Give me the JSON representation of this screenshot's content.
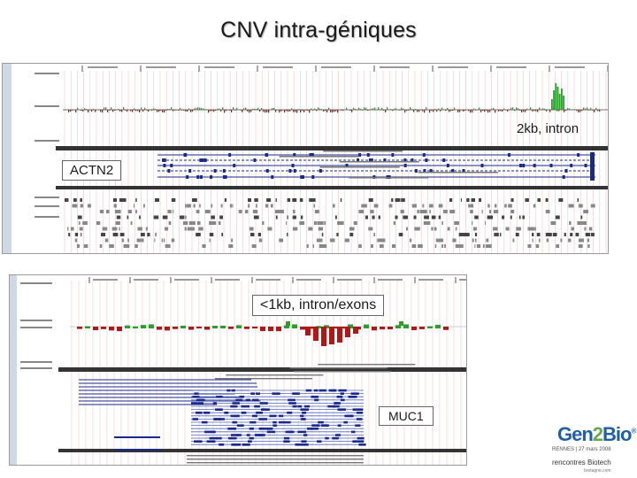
{
  "title": "CNV intra-géniques",
  "annotations": {
    "top_intron": "2kb, intron",
    "top_gene": "ACTN2",
    "bottom_intron": "<1kb, intron/exons",
    "bottom_gene": "MUC1"
  },
  "logo": {
    "word_a": "Gen",
    "word_b": "2",
    "word_c": "Bio",
    "sup": "®",
    "line1": "RENNES | 27 mars 2008",
    "line2": "rencontres Biotech",
    "line3": "bretagne.com"
  },
  "colors": {
    "gain": "#2a9d2a",
    "loss": "#b01818",
    "track_blue": "#1a2a8c",
    "track_gray": "#888888",
    "sidebar": "#cfd9e6"
  }
}
